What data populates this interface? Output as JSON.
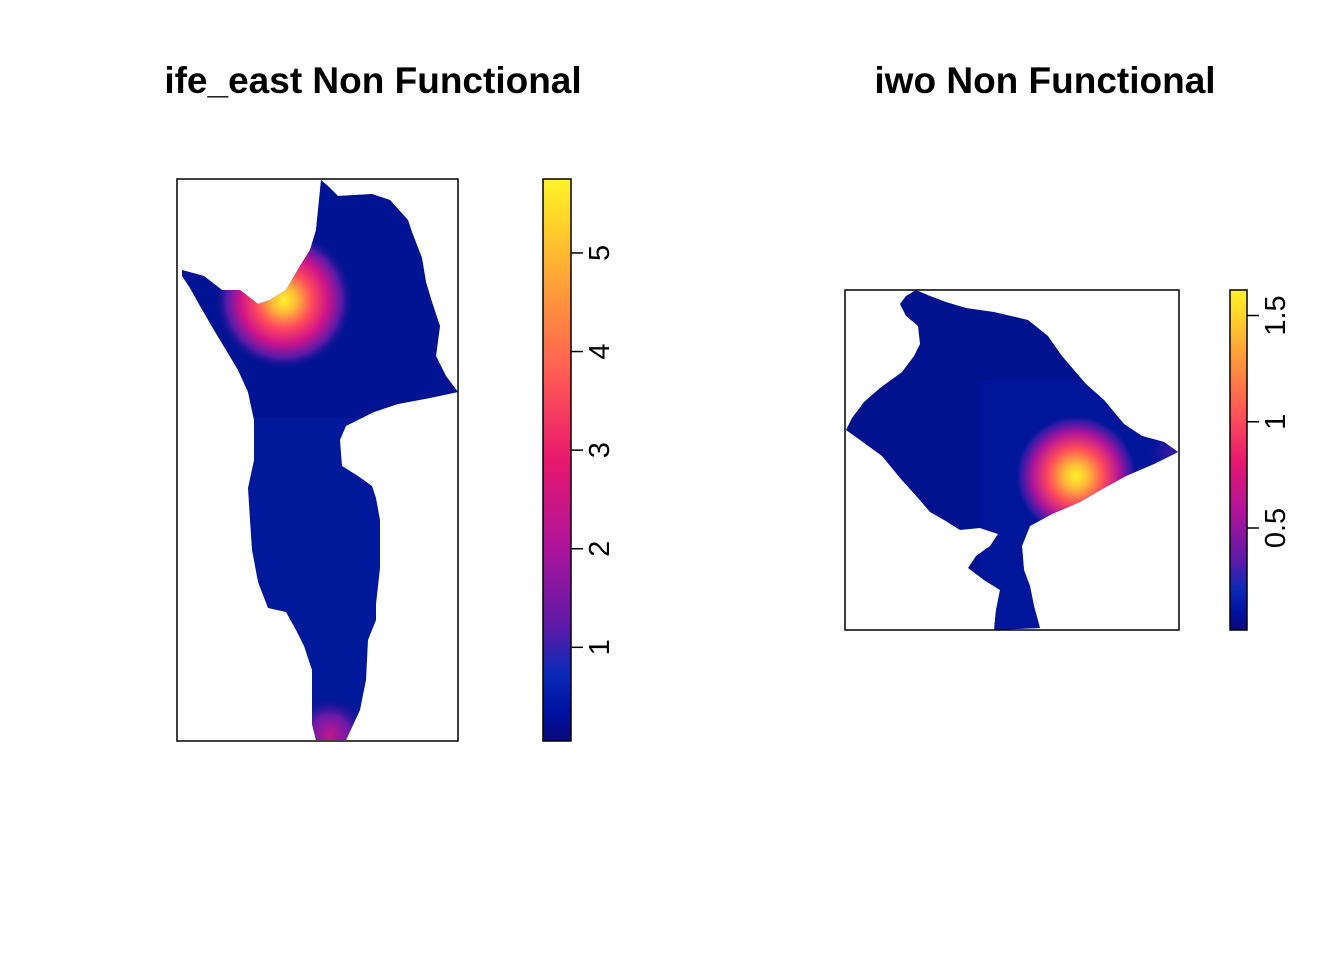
{
  "chart_data": [
    {
      "type": "heatmap",
      "title": "ife_east Non Functional",
      "legend": {
        "placement": "right",
        "range": [
          0.05,
          5.75
        ],
        "ticks": [
          1,
          2,
          3,
          4,
          5
        ],
        "tick_labels": [
          "1",
          "2",
          "3",
          "4",
          "5"
        ]
      },
      "hotspots": [
        {
          "value": 5.7,
          "location": "upper-left interior"
        },
        {
          "value": 2.5,
          "location": "bottom tip"
        }
      ],
      "background_value": 0.1,
      "axes": "none"
    },
    {
      "type": "heatmap",
      "title": "iwo Non Functional",
      "legend": {
        "placement": "right",
        "range": [
          0.02,
          1.62
        ],
        "ticks": [
          0.5,
          1,
          1.5
        ],
        "tick_labels": [
          "0.5",
          "1",
          "1.5"
        ]
      },
      "hotspots": [
        {
          "value": 1.6,
          "location": "lower-right interior"
        }
      ],
      "background_value": 0.05,
      "axes": "none"
    }
  ],
  "colors": {
    "palette_low": "#0d0887",
    "palette_mid_low": "#0020a8",
    "palette_mid": "#9c179e",
    "palette_mid_high": "#ed2a78",
    "palette_high": "#fdb32f",
    "palette_top": "#f0f921",
    "frame": "#000000"
  }
}
